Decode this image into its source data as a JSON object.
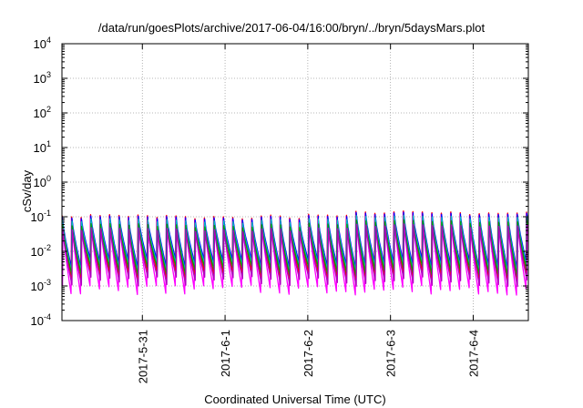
{
  "chart_data": {
    "type": "line",
    "title": "/data/run/goesPlots/archive/2017-06-04/16:00/bryn/../bryn/5daysMars.plot",
    "xlabel": "Coordinated Universal Time (UTC)",
    "ylabel": "cSv/day",
    "y_scale": "log",
    "ylim": [
      0.0001,
      10000
    ],
    "y_ticks": [
      {
        "value": 0.0001,
        "base": "10",
        "exp": "-4"
      },
      {
        "value": 0.001,
        "base": "10",
        "exp": "-3"
      },
      {
        "value": 0.01,
        "base": "10",
        "exp": "-2"
      },
      {
        "value": 0.1,
        "base": "10",
        "exp": "-1"
      },
      {
        "value": 1,
        "base": "10",
        "exp": "0"
      },
      {
        "value": 10,
        "base": "10",
        "exp": "1"
      },
      {
        "value": 100,
        "base": "10",
        "exp": "2"
      },
      {
        "value": 1000,
        "base": "10",
        "exp": "3"
      },
      {
        "value": 10000,
        "base": "10",
        "exp": "4"
      }
    ],
    "xlim": [
      "2017-05-30 00:40",
      "2017-06-04 16:00"
    ],
    "x_ticks": [
      "2017-5-31",
      "2017-6-1",
      "2017-6-2",
      "2017-6-3",
      "2017-6-4"
    ],
    "grid": true,
    "series_pattern": {
      "cycle_hours": 2.75,
      "peak_range": [
        0.07,
        0.15
      ],
      "trough_range": [
        0.0007,
        0.004
      ],
      "elevated_after": "2017-06-02 12:00"
    },
    "series": [
      {
        "color": "#ff00ff",
        "peak_factor": 0.95,
        "trough_factor": 0.45,
        "phase": 0.0
      },
      {
        "color": "#ff0000",
        "peak_factor": 1.0,
        "trough_factor": 1.2,
        "phase": 0.03
      },
      {
        "color": "#0000ff",
        "peak_factor": 0.92,
        "trough_factor": 2.6,
        "phase": 0.05
      },
      {
        "color": "#00c0c0",
        "peak_factor": 0.75,
        "trough_factor": 2.0,
        "phase": 0.06
      },
      {
        "color": "#00a000",
        "peak_factor": 0.55,
        "trough_factor": 1.6,
        "phase": 0.08
      },
      {
        "color": "#b000c0",
        "peak_factor": 0.42,
        "trough_factor": 0.8,
        "phase": 0.1
      }
    ]
  }
}
